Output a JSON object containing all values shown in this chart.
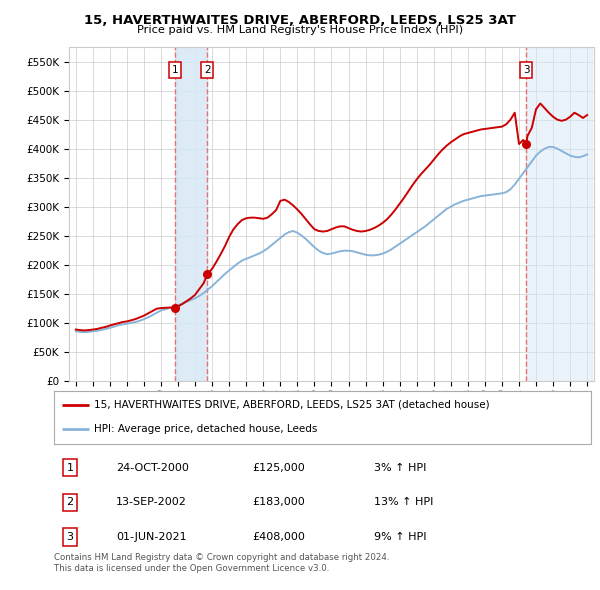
{
  "title": "15, HAVERTHWAITES DRIVE, ABERFORD, LEEDS, LS25 3AT",
  "subtitle": "Price paid vs. HM Land Registry's House Price Index (HPI)",
  "ylim": [
    0,
    575000
  ],
  "yticks": [
    0,
    50000,
    100000,
    150000,
    200000,
    250000,
    300000,
    350000,
    400000,
    450000,
    500000,
    550000
  ],
  "ytick_labels": [
    "£0",
    "£50K",
    "£100K",
    "£150K",
    "£200K",
    "£250K",
    "£300K",
    "£350K",
    "£400K",
    "£450K",
    "£500K",
    "£550K"
  ],
  "sale_dates_num": [
    2000.82,
    2002.71,
    2021.42
  ],
  "sale_prices": [
    125000,
    183000,
    408000
  ],
  "sale_labels": [
    "1",
    "2",
    "3"
  ],
  "hpi_color": "#89b4d9",
  "price_color": "#cc0000",
  "vline_color": "#e87070",
  "shade_color": "#d6e8f5",
  "legend_line1": "15, HAVERTHWAITES DRIVE, ABERFORD, LEEDS, LS25 3AT (detached house)",
  "legend_line2": "HPI: Average price, detached house, Leeds",
  "table_entries": [
    {
      "label": "1",
      "date": "24-OCT-2000",
      "price": "£125,000",
      "hpi": "3% ↑ HPI"
    },
    {
      "label": "2",
      "date": "13-SEP-2002",
      "price": "£183,000",
      "hpi": "13% ↑ HPI"
    },
    {
      "label": "3",
      "date": "01-JUN-2021",
      "price": "£408,000",
      "hpi": "9% ↑ HPI"
    }
  ],
  "footer": "Contains HM Land Registry data © Crown copyright and database right 2024.\nThis data is licensed under the Open Government Licence v3.0.",
  "background_color": "#ffffff",
  "grid_color": "#cccccc",
  "hpi_data_x": [
    1995.0,
    1995.25,
    1995.5,
    1995.75,
    1996.0,
    1996.25,
    1996.5,
    1996.75,
    1997.0,
    1997.25,
    1997.5,
    1997.75,
    1998.0,
    1998.25,
    1998.5,
    1998.75,
    1999.0,
    1999.25,
    1999.5,
    1999.75,
    2000.0,
    2000.25,
    2000.5,
    2000.75,
    2001.0,
    2001.25,
    2001.5,
    2001.75,
    2002.0,
    2002.25,
    2002.5,
    2002.75,
    2003.0,
    2003.25,
    2003.5,
    2003.75,
    2004.0,
    2004.25,
    2004.5,
    2004.75,
    2005.0,
    2005.25,
    2005.5,
    2005.75,
    2006.0,
    2006.25,
    2006.5,
    2006.75,
    2007.0,
    2007.25,
    2007.5,
    2007.75,
    2008.0,
    2008.25,
    2008.5,
    2008.75,
    2009.0,
    2009.25,
    2009.5,
    2009.75,
    2010.0,
    2010.25,
    2010.5,
    2010.75,
    2011.0,
    2011.25,
    2011.5,
    2011.75,
    2012.0,
    2012.25,
    2012.5,
    2012.75,
    2013.0,
    2013.25,
    2013.5,
    2013.75,
    2014.0,
    2014.25,
    2014.5,
    2014.75,
    2015.0,
    2015.25,
    2015.5,
    2015.75,
    2016.0,
    2016.25,
    2016.5,
    2016.75,
    2017.0,
    2017.25,
    2017.5,
    2017.75,
    2018.0,
    2018.25,
    2018.5,
    2018.75,
    2019.0,
    2019.25,
    2019.5,
    2019.75,
    2020.0,
    2020.25,
    2020.5,
    2020.75,
    2021.0,
    2021.25,
    2021.5,
    2021.75,
    2022.0,
    2022.25,
    2022.5,
    2022.75,
    2023.0,
    2023.25,
    2023.5,
    2023.75,
    2024.0,
    2024.25,
    2024.5,
    2024.75,
    2025.0
  ],
  "hpi_data_y": [
    85000,
    84000,
    83500,
    84000,
    85000,
    86000,
    87500,
    89000,
    91000,
    93000,
    95500,
    97000,
    98000,
    99500,
    101000,
    103000,
    106000,
    109000,
    113000,
    117000,
    121000,
    123000,
    125000,
    127000,
    130000,
    133000,
    136000,
    139000,
    142000,
    146000,
    151000,
    157000,
    163000,
    170000,
    177000,
    184000,
    190000,
    196000,
    202000,
    207000,
    210000,
    213000,
    216000,
    219000,
    223000,
    228000,
    234000,
    240000,
    246000,
    252000,
    256000,
    258000,
    255000,
    250000,
    244000,
    237000,
    230000,
    224000,
    220000,
    218000,
    219000,
    221000,
    223000,
    224000,
    224000,
    223000,
    221000,
    219000,
    217000,
    216000,
    216000,
    217000,
    219000,
    222000,
    226000,
    231000,
    236000,
    241000,
    246000,
    251000,
    256000,
    261000,
    266000,
    272000,
    278000,
    284000,
    290000,
    296000,
    300000,
    304000,
    307000,
    310000,
    312000,
    314000,
    316000,
    318000,
    319000,
    320000,
    321000,
    322000,
    323000,
    325000,
    330000,
    338000,
    348000,
    358000,
    368000,
    378000,
    388000,
    395000,
    400000,
    403000,
    403000,
    400000,
    396000,
    392000,
    388000,
    386000,
    385000,
    387000,
    390000
  ],
  "price_data_x": [
    1995.0,
    1995.25,
    1995.5,
    1995.75,
    1996.0,
    1996.25,
    1996.5,
    1996.75,
    1997.0,
    1997.25,
    1997.5,
    1997.75,
    1998.0,
    1998.25,
    1998.5,
    1998.75,
    1999.0,
    1999.25,
    1999.5,
    1999.75,
    2000.0,
    2000.25,
    2000.5,
    2000.75,
    2000.82,
    2001.0,
    2001.25,
    2001.5,
    2001.75,
    2002.0,
    2002.25,
    2002.5,
    2002.71,
    2003.0,
    2003.25,
    2003.5,
    2003.75,
    2004.0,
    2004.25,
    2004.5,
    2004.75,
    2005.0,
    2005.25,
    2005.5,
    2005.75,
    2006.0,
    2006.25,
    2006.5,
    2006.75,
    2007.0,
    2007.25,
    2007.5,
    2007.75,
    2008.0,
    2008.25,
    2008.5,
    2008.75,
    2009.0,
    2009.25,
    2009.5,
    2009.75,
    2010.0,
    2010.25,
    2010.5,
    2010.75,
    2011.0,
    2011.25,
    2011.5,
    2011.75,
    2012.0,
    2012.25,
    2012.5,
    2012.75,
    2013.0,
    2013.25,
    2013.5,
    2013.75,
    2014.0,
    2014.25,
    2014.5,
    2014.75,
    2015.0,
    2015.25,
    2015.5,
    2015.75,
    2016.0,
    2016.25,
    2016.5,
    2016.75,
    2017.0,
    2017.25,
    2017.5,
    2017.75,
    2018.0,
    2018.25,
    2018.5,
    2018.75,
    2019.0,
    2019.25,
    2019.5,
    2019.75,
    2020.0,
    2020.25,
    2020.5,
    2020.75,
    2021.0,
    2021.25,
    2021.42,
    2021.5,
    2021.75,
    2022.0,
    2022.25,
    2022.5,
    2022.75,
    2023.0,
    2023.25,
    2023.5,
    2023.75,
    2024.0,
    2024.25,
    2024.5,
    2024.75,
    2025.0
  ],
  "price_data_y": [
    88000,
    87000,
    86500,
    87000,
    88000,
    89000,
    91000,
    92500,
    95000,
    97000,
    99000,
    101000,
    102000,
    104000,
    106000,
    109000,
    112000,
    116000,
    120000,
    124000,
    125000,
    125500,
    126000,
    125000,
    125000,
    128000,
    132000,
    137000,
    142000,
    148000,
    158000,
    168000,
    183000,
    193000,
    205000,
    218000,
    232000,
    248000,
    261000,
    270000,
    277000,
    280000,
    281000,
    281000,
    280000,
    279000,
    281000,
    287000,
    294000,
    310000,
    312000,
    308000,
    302000,
    295000,
    287000,
    278000,
    269000,
    261000,
    258000,
    257000,
    258000,
    261000,
    264000,
    266000,
    266000,
    263000,
    260000,
    258000,
    257000,
    258000,
    260000,
    263000,
    267000,
    272000,
    278000,
    286000,
    295000,
    305000,
    315000,
    326000,
    337000,
    347000,
    356000,
    364000,
    372000,
    381000,
    390000,
    398000,
    405000,
    411000,
    416000,
    421000,
    425000,
    427000,
    429000,
    431000,
    433000,
    434000,
    435000,
    436000,
    437000,
    438000,
    442000,
    450000,
    462000,
    408000,
    415000,
    408000,
    422000,
    436000,
    468000,
    478000,
    470000,
    462000,
    455000,
    450000,
    448000,
    450000,
    455000,
    462000,
    458000,
    453000,
    458000
  ]
}
